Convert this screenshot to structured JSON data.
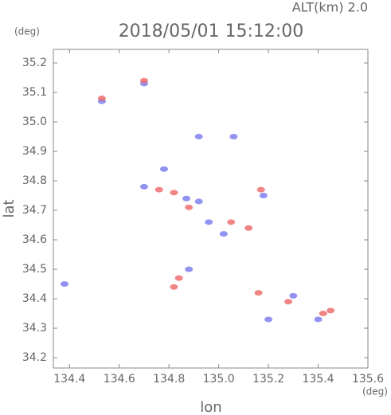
{
  "chart_data": {
    "type": "scatter",
    "title": "2018/05/01 15:12:00",
    "subtitle": "ALT(km) 2.0",
    "xlabel": "lon",
    "ylabel": "lat",
    "xunit": "(deg)",
    "yunit": "(deg)",
    "xlim": [
      134.335,
      135.6
    ],
    "ylim": [
      34.165,
      35.246
    ],
    "xticks": [
      134.4,
      134.6,
      134.8,
      {
        "value": 135,
        "label": "135.0"
      },
      135.2,
      135.4,
      135.6
    ],
    "yticks": [
      34.2,
      34.3,
      34.4,
      34.5,
      34.6,
      34.7,
      34.8,
      34.9,
      {
        "value": 35,
        "label": "35.0"
      },
      35.1,
      35.2
    ],
    "grid": false,
    "series": [
      {
        "color": "#7777ee",
        "x": [
          134.38,
          134.53,
          134.7,
          134.78,
          134.7,
          134.87,
          134.92,
          134.96,
          135.02,
          134.92,
          135.06,
          134.88,
          135.3,
          135.2,
          135.4,
          135.18
        ],
        "values": [
          34.45,
          35.07,
          35.13,
          34.84,
          34.78,
          34.74,
          34.73,
          34.66,
          34.62,
          34.95,
          34.95,
          34.5,
          34.41,
          34.33,
          34.33,
          34.75
        ]
      },
      {
        "color": "#ee6666",
        "x": [
          134.7,
          134.76,
          134.82,
          134.88,
          135.05,
          134.84,
          134.82,
          135.16,
          135.45,
          135.42,
          135.12,
          135.17,
          135.28,
          134.53
        ],
        "values": [
          35.14,
          34.77,
          34.76,
          34.71,
          34.66,
          34.47,
          34.44,
          34.42,
          34.36,
          34.35,
          34.64,
          34.77,
          34.39,
          35.08
        ]
      }
    ]
  }
}
